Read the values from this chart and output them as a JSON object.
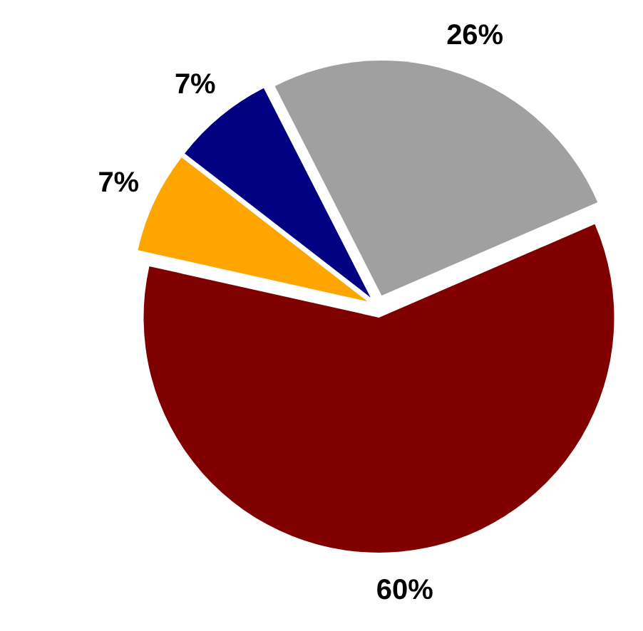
{
  "chart_data": {
    "type": "pie",
    "categories": [
      null,
      null,
      null,
      null
    ],
    "values": [
      26,
      60,
      7,
      7
    ],
    "colors": [
      "#a0a0a0",
      "#800000",
      "#ffa500",
      "#000080"
    ],
    "value_labels": [
      "26%",
      "60%",
      "7%",
      "7%"
    ]
  }
}
